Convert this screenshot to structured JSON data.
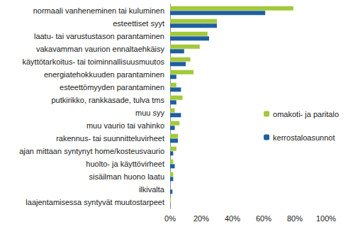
{
  "chart_data": {
    "type": "bar",
    "orientation": "horizontal",
    "grid": false,
    "legend": "right",
    "categories": [
      "normaali vanheneminen tai kuluminen",
      "esteettiset syyt",
      "laatu- tai varustustason parantaminen",
      "vakavamman vaurion ennaltaehkäisy",
      "käyttötarkoitus- tai toiminnallisuusmuutos",
      "energiatehokkuuden parantaminen",
      "esteettömyyden parantaminen",
      "putkirikko, rankkasade, tulva tms",
      "muu syy",
      "muu vaurio tai vahinko",
      "rakennus- tai suunnitteluvirheet",
      "ajan mittaan syntynyt home/kosteusvaurio",
      "huolto- ja käyttövirheet",
      "sisäilman huono laatu",
      "ilkivalta",
      "laajentamisessa syntyvät muutostarpeet"
    ],
    "series": [
      {
        "name": "omakoti- ja paritalo",
        "color": "#a2c93a",
        "values": [
          79,
          30,
          24,
          19,
          13,
          15,
          4,
          8,
          3,
          6,
          5,
          4,
          2,
          2,
          0,
          0.5
        ]
      },
      {
        "name": "kerrostaloasunnot",
        "color": "#1f5fa0",
        "values": [
          61,
          30,
          25,
          9,
          10,
          4,
          7,
          4,
          7,
          3,
          5,
          2,
          3,
          2,
          1.5,
          0
        ]
      }
    ],
    "xlim": [
      0,
      100
    ],
    "xticks": [
      {
        "value": 0,
        "label": "0%"
      },
      {
        "value": 20,
        "label": "20%"
      },
      {
        "value": 40,
        "label": "40%"
      },
      {
        "value": 60,
        "label": "60%"
      },
      {
        "value": 80,
        "label": "80%"
      },
      {
        "value": 100,
        "label": "100%"
      }
    ]
  }
}
